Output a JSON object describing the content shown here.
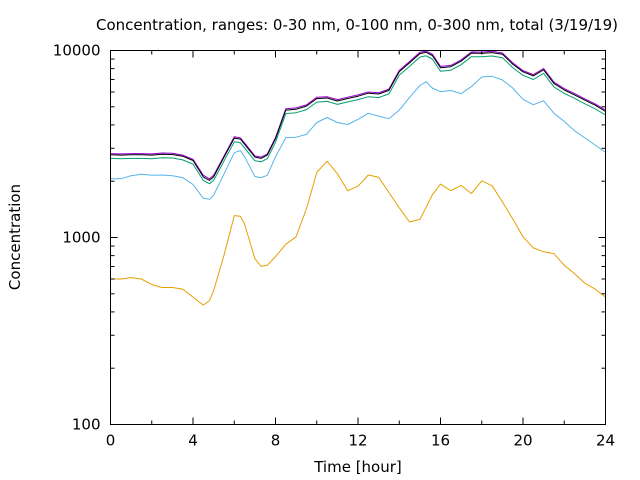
{
  "chart_data": {
    "type": "line",
    "title": "Concentration, ranges: 0-30 nm, 0-100 nm, 0-300 nm, total (3/19/19)",
    "xlabel": "Time [hour]",
    "ylabel": "Concentration",
    "xlim": [
      0,
      24
    ],
    "ylim": [
      100,
      10000
    ],
    "yscale": "log",
    "grid": false,
    "legend": "none",
    "x_ticks": [
      0,
      4,
      8,
      12,
      16,
      20,
      24
    ],
    "x_tick_labels": [
      "0",
      "4",
      "8",
      "12",
      "16",
      "20",
      "24"
    ],
    "y_ticks": [
      100,
      1000,
      10000
    ],
    "y_tick_labels": [
      "100",
      "1000",
      "10000"
    ],
    "x": [
      0,
      0.5,
      1,
      1.5,
      2,
      2.5,
      3,
      3.5,
      4,
      4.5,
      4.8,
      5,
      5.5,
      6,
      6.3,
      6.5,
      7,
      7.3,
      7.6,
      8,
      8.5,
      9,
      9.5,
      10,
      10.5,
      11,
      11.5,
      12,
      12.5,
      13,
      13.5,
      14,
      14.5,
      15,
      15.3,
      15.6,
      16,
      16.5,
      17,
      17.5,
      18,
      18.5,
      19,
      19.5,
      20,
      20.5,
      21,
      21.5,
      22,
      22.5,
      23,
      23.5,
      24
    ],
    "series": [
      {
        "color": "#9400d3",
        "values": [
          2810,
          2800,
          2810,
          2810,
          2800,
          2830,
          2820,
          2760,
          2620,
          2150,
          2060,
          2150,
          2720,
          3460,
          3410,
          3200,
          2730,
          2690,
          2800,
          3420,
          4880,
          4930,
          5120,
          5620,
          5660,
          5460,
          5630,
          5790,
          6000,
          5940,
          6220,
          7830,
          8730,
          9780,
          9930,
          9550,
          8220,
          8320,
          8910,
          9830,
          9810,
          9910,
          9700,
          8590,
          7810,
          7430,
          8010,
          6780,
          6250,
          5880,
          5510,
          5180,
          4800
        ]
      },
      {
        "color": "#000000",
        "values": [
          2770,
          2760,
          2770,
          2770,
          2760,
          2790,
          2780,
          2720,
          2580,
          2110,
          2020,
          2110,
          2680,
          3400,
          3360,
          3150,
          2690,
          2650,
          2760,
          3370,
          4800,
          4850,
          5040,
          5530,
          5570,
          5370,
          5540,
          5700,
          5910,
          5850,
          6120,
          7710,
          8590,
          9620,
          9780,
          9400,
          8090,
          8190,
          8770,
          9680,
          9650,
          9750,
          9550,
          8460,
          7690,
          7310,
          7880,
          6670,
          6150,
          5790,
          5420,
          5100,
          4720
        ]
      },
      {
        "color": "#009e73",
        "values": [
          2650,
          2640,
          2650,
          2650,
          2640,
          2670,
          2660,
          2600,
          2470,
          2020,
          1940,
          2020,
          2560,
          3250,
          3210,
          3010,
          2570,
          2540,
          2640,
          3230,
          4600,
          4650,
          4830,
          5300,
          5340,
          5150,
          5310,
          5460,
          5660,
          5600,
          5860,
          7390,
          8230,
          9220,
          9370,
          9010,
          7750,
          7850,
          8400,
          9270,
          9250,
          9340,
          9150,
          8100,
          7370,
          7000,
          7550,
          6390,
          5900,
          5550,
          5190,
          4880,
          4520
        ]
      },
      {
        "color": "#56b4e9",
        "values": [
          2060,
          2060,
          2140,
          2180,
          2150,
          2160,
          2140,
          2090,
          1920,
          1620,
          1600,
          1680,
          2180,
          2840,
          2920,
          2700,
          2120,
          2090,
          2150,
          2700,
          3420,
          3440,
          3560,
          4120,
          4380,
          4120,
          4020,
          4280,
          4620,
          4460,
          4320,
          4800,
          5620,
          6500,
          6810,
          6300,
          6020,
          6110,
          5880,
          6410,
          7220,
          7290,
          6950,
          6300,
          5480,
          5130,
          5380,
          4620,
          4170,
          3720,
          3410,
          3120,
          2850
        ]
      },
      {
        "color": "#e69f00",
        "values": [
          600,
          600,
          610,
          600,
          560,
          540,
          540,
          530,
          480,
          435,
          460,
          520,
          800,
          1310,
          1300,
          1180,
          770,
          700,
          710,
          790,
          920,
          1010,
          1420,
          2230,
          2560,
          2190,
          1780,
          1880,
          2160,
          2100,
          1740,
          1440,
          1210,
          1250,
          1450,
          1690,
          1930,
          1780,
          1900,
          1720,
          2010,
          1890,
          1550,
          1260,
          1010,
          880,
          840,
          820,
          710,
          640,
          570,
          530,
          480
        ]
      }
    ]
  }
}
